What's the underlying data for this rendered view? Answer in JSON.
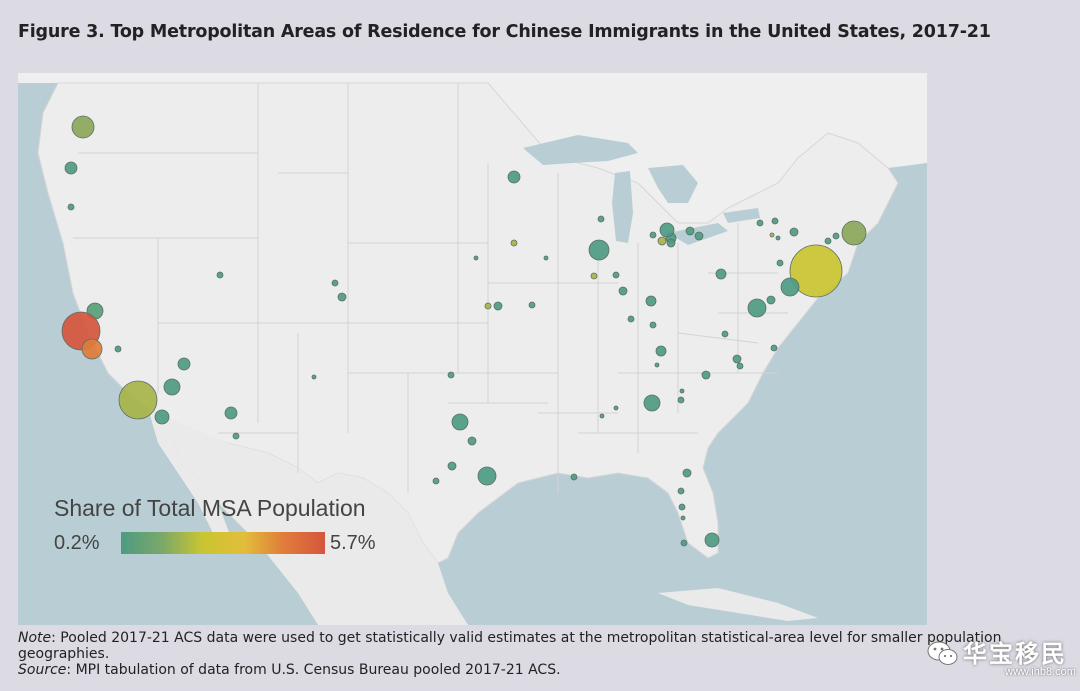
{
  "figure": {
    "title": "Figure 3. Top Metropolitan Areas of Residence for Chinese Immigrants in the United States, 2017-21"
  },
  "legend": {
    "title": "Share of Total MSA Population",
    "min_label": "0.2%",
    "max_label": "5.7%"
  },
  "colors": {
    "sea": "#b9ced4",
    "land": "#ededed",
    "state_border": "#cfcfcf",
    "low": "#4d9b82",
    "mid": "#c9c531",
    "high": "#d5563c"
  },
  "notes": {
    "note_label": "Note",
    "note_text": ": Pooled 2017-21 ACS data were used to get statistically valid estimates at the metropolitan statistical-area level for smaller population geographies.",
    "source_label": "Source",
    "source_text": ": MPI tabulation of data from U.S. Census Bureau pooled 2017-21 ACS."
  },
  "watermark": {
    "text": "华宝移民",
    "url": "www.ihb8.com"
  }
}
